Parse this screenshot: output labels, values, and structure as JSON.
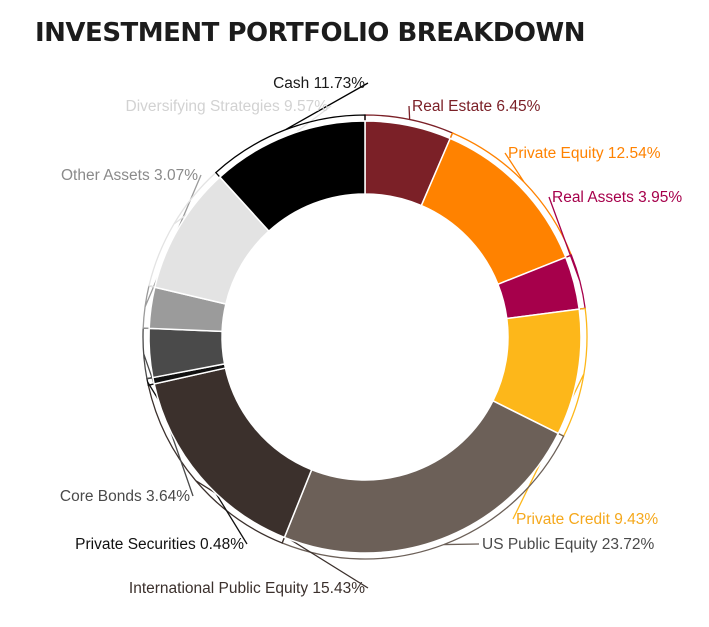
{
  "title": "INVESTMENT PORTFOLIO BREAKDOWN",
  "chart_data": {
    "type": "pie",
    "variant": "donut",
    "title": "INVESTMENT PORTFOLIO BREAKDOWN",
    "unit": "%",
    "legend": "none",
    "slices": [
      {
        "name": "Real Estate",
        "value": 6.45,
        "label": "Real Estate 6.45%",
        "color": "#7b2027",
        "label_color": "#7b2027"
      },
      {
        "name": "Private Equity",
        "value": 12.54,
        "label": "Private Equity 12.54%",
        "color": "#ff8200",
        "label_color": "#ff8200"
      },
      {
        "name": "Real Assets",
        "value": 3.95,
        "label": "Real Assets 3.95%",
        "color": "#a6004b",
        "label_color": "#a6004b"
      },
      {
        "name": "Private Credit",
        "value": 9.43,
        "label": "Private Credit 9.43%",
        "color": "#fdb71a",
        "label_color": "#f5a81c"
      },
      {
        "name": "US Public Equity",
        "value": 23.72,
        "label": "US Public Equity 23.72%",
        "color": "#6c6058",
        "label_color": "#4a4a4a"
      },
      {
        "name": "International Public Equity",
        "value": 15.43,
        "label": "International Public Equity 15.43%",
        "color": "#3b302c",
        "label_color": "#3b302c"
      },
      {
        "name": "Private Securities",
        "value": 0.48,
        "label": "Private Securities 0.48%",
        "color": "#111111",
        "label_color": "#111111"
      },
      {
        "name": "Core Bonds",
        "value": 3.64,
        "label": "Core Bonds 3.64%",
        "color": "#4a4a4a",
        "label_color": "#4a4a4a"
      },
      {
        "name": "Other Assets",
        "value": 3.07,
        "label": "Other Assets 3.07%",
        "color": "#9b9b9b",
        "label_color": "#8a8a8a"
      },
      {
        "name": "Diversifying Strategies",
        "value": 9.57,
        "label": "Diversifying Strategies 9.57%",
        "color": "#e3e3e3",
        "label_color": "#d2d2d2"
      },
      {
        "name": "Cash",
        "value": 11.73,
        "label": "Cash 11.73%",
        "color": "#000000",
        "label_color": "#1a1a1a"
      }
    ]
  }
}
